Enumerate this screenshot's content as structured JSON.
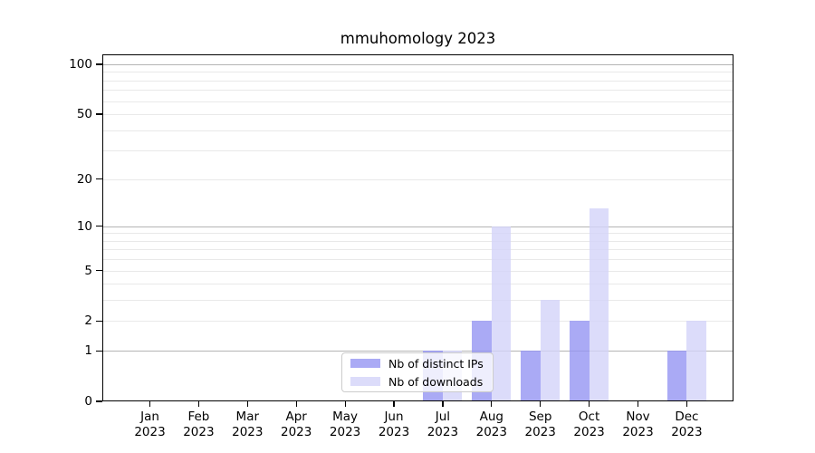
{
  "chart_data": {
    "type": "bar",
    "title": "mmuhomology 2023",
    "categories": [
      "Jan",
      "Feb",
      "Mar",
      "Apr",
      "May",
      "Jun",
      "Jul",
      "Aug",
      "Sep",
      "Oct",
      "Nov",
      "Dec"
    ],
    "category_year": "2023",
    "series": [
      {
        "name": "Nb of distinct IPs",
        "color": "#9595f3",
        "alpha": 0.8,
        "values": [
          0,
          0,
          0,
          0,
          0,
          0,
          1,
          2,
          1,
          2,
          0,
          1
        ]
      },
      {
        "name": "Nb of downloads",
        "color": "#d3d3f9",
        "alpha": 0.8,
        "values": [
          0,
          0,
          0,
          0,
          0,
          0,
          1,
          10,
          3,
          13,
          0,
          2
        ]
      }
    ],
    "xlabel": "",
    "ylabel": "",
    "y_scale": "log10(1+x)",
    "y_ticks": [
      0,
      1,
      2,
      5,
      10,
      20,
      50,
      100
    ],
    "ylim": [
      0,
      118
    ],
    "grid": true,
    "grid_major_color": "#b5b5b5",
    "grid_minor_color": "#e9e9e9",
    "legend_position": "inside-bottom-center"
  }
}
